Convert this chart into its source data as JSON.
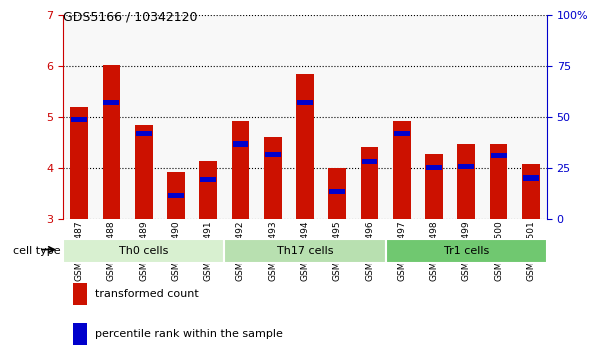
{
  "title": "GDS5166 / 10342120",
  "samples": [
    "GSM1350487",
    "GSM1350488",
    "GSM1350489",
    "GSM1350490",
    "GSM1350491",
    "GSM1350492",
    "GSM1350493",
    "GSM1350494",
    "GSM1350495",
    "GSM1350496",
    "GSM1350497",
    "GSM1350498",
    "GSM1350499",
    "GSM1350500",
    "GSM1350501"
  ],
  "red_values": [
    5.2,
    6.02,
    4.85,
    3.92,
    4.13,
    4.93,
    4.6,
    5.85,
    4.0,
    4.41,
    4.93,
    4.27,
    4.47,
    4.47,
    4.07
  ],
  "blue_values": [
    4.95,
    5.28,
    4.68,
    3.45,
    3.78,
    4.47,
    4.27,
    5.28,
    3.53,
    4.12,
    4.68,
    4.0,
    4.02,
    4.25,
    3.8
  ],
  "cell_groups": [
    {
      "label": "Th0 cells",
      "start": 0,
      "end": 5,
      "color": "#d8f0d0"
    },
    {
      "label": "Th17 cells",
      "start": 5,
      "end": 10,
      "color": "#b8e0b0"
    },
    {
      "label": "Tr1 cells",
      "start": 10,
      "end": 15,
      "color": "#70c870"
    }
  ],
  "ylim_left": [
    3,
    7
  ],
  "ylim_right": [
    0,
    100
  ],
  "yticks_left": [
    3,
    4,
    5,
    6,
    7
  ],
  "yticks_right": [
    0,
    25,
    50,
    75,
    100
  ],
  "ytick_labels_right": [
    "0",
    "25",
    "50",
    "75",
    "100%"
  ],
  "ylabel_left_color": "#cc0000",
  "ylabel_right_color": "#0000cc",
  "bar_color": "#cc1100",
  "blue_color": "#0000cc",
  "legend_red": "transformed count",
  "legend_blue": "percentile rank within the sample",
  "cell_type_label": "cell type",
  "bar_width": 0.55
}
